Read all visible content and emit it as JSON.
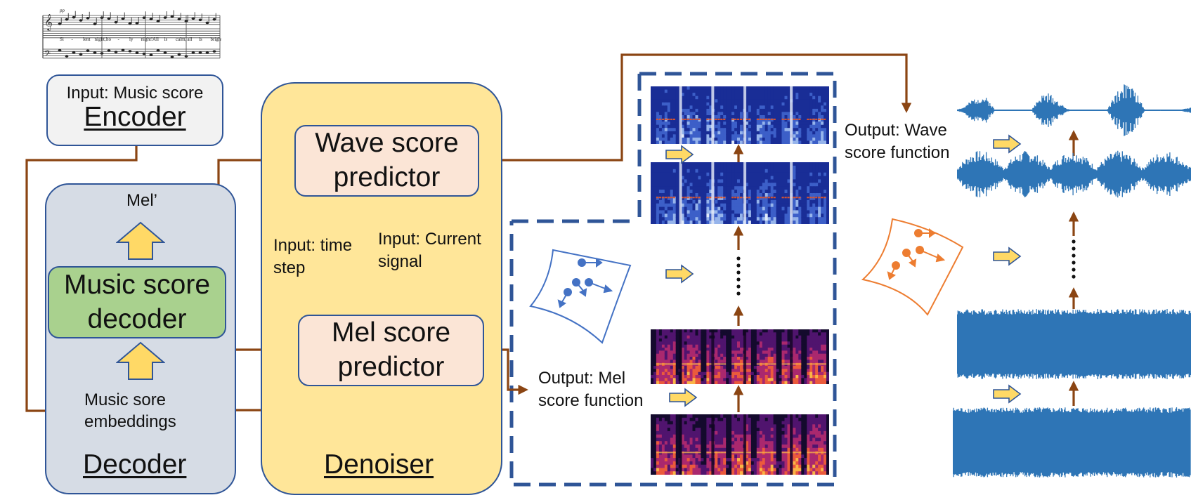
{
  "score": {
    "dynamic": "pp",
    "lyrics": [
      "Si",
      "-",
      "lent",
      "night,",
      "ho",
      "-",
      "ly",
      "night!",
      "All",
      "is",
      "calm,",
      "all",
      "is",
      "bright,"
    ]
  },
  "encoder": {
    "input_label": "Input: Music score",
    "title": "Encoder"
  },
  "decoder": {
    "mel_label": "Mel’",
    "block_label": "Music score decoder",
    "embed_label": "Music sore embeddings",
    "title": "Decoder"
  },
  "denoiser": {
    "wave_predictor": "Wave score predictor",
    "mel_predictor": "Mel score predictor",
    "input_time": "Input: time step",
    "input_signal": "Input: Current signal",
    "title": "Denoiser"
  },
  "outputs": {
    "mel": "Output: Mel score function",
    "wave": "Output: Wave score function"
  },
  "icons": [
    "vector-field-icon",
    "waveform-icon",
    "spectrogram-icon",
    "arrow-right-icon",
    "ellipsis-icon"
  ],
  "colors": {
    "wire": "#8B4513",
    "dash_box": "#2F5597",
    "encoder_fill": "#F2F2F2",
    "decoder_fill": "#D6DCE5",
    "decoder_block": "#A9D18E",
    "denoiser_fill": "#FFE699",
    "predictor_fill": "#FBE5D6",
    "box_border": "#2F5597",
    "yellow_arrow": "#FFD966",
    "wave_blue": "#2E75B6",
    "orange": "#ED7D31",
    "blue_field": "#4472C4"
  }
}
